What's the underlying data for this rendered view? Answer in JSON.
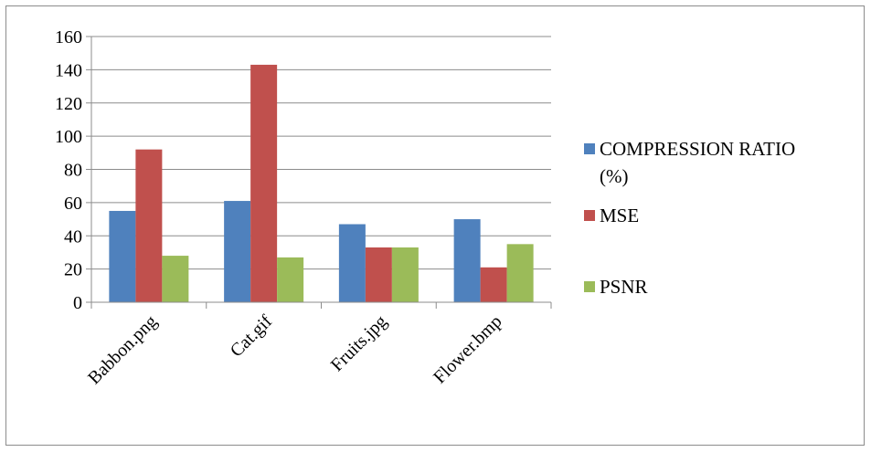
{
  "chart_data": {
    "type": "bar",
    "title": "",
    "xlabel": "",
    "ylabel": "",
    "categories": [
      "Babbon.png",
      "Cat.gif",
      "Fruits.jpg",
      "Flower.bmp"
    ],
    "ylim": [
      0,
      160
    ],
    "yticks": [
      0,
      20,
      40,
      60,
      80,
      100,
      120,
      140,
      160
    ],
    "grid": true,
    "legend_position": "right",
    "series": [
      {
        "name": "COMPRESSION RATIO (%)",
        "legend_lines": [
          "COMPRESSION RATIO",
          "(%)"
        ],
        "color": "#4f81bd",
        "values": [
          55,
          61,
          47,
          50
        ]
      },
      {
        "name": "MSE",
        "legend_lines": [
          "MSE"
        ],
        "color": "#c0504d",
        "values": [
          92,
          143,
          33,
          21
        ]
      },
      {
        "name": "PSNR",
        "legend_lines": [
          "PSNR"
        ],
        "color": "#9bbb59",
        "values": [
          28,
          27,
          33,
          35
        ]
      }
    ]
  }
}
